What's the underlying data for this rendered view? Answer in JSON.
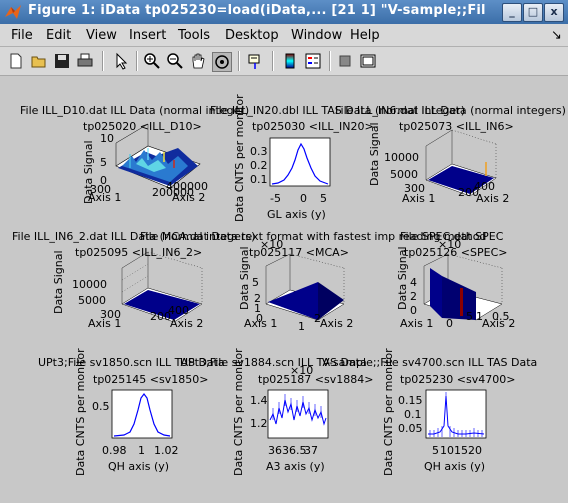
{
  "window": {
    "title": "Figure 1: iData tp025230=load(iData,... [21   1] \"V-sample;;Fil",
    "buttons": [
      "_",
      "□",
      "x"
    ]
  },
  "menu": [
    "File",
    "Edit",
    "View",
    "Insert",
    "Tools",
    "Desktop",
    "Window",
    "Help"
  ],
  "menu_arrow": "↘",
  "toolbar": [
    "new-file-icon",
    "open-folder-icon",
    "save-icon",
    "print-icon",
    "pointer-icon",
    "zoom-in-icon",
    "zoom-out-icon",
    "pan-hand-icon",
    "rotate-3d-icon",
    "data-cursor-icon",
    "colorbar-icon",
    "legend-icon",
    "hide-plot-tools-icon",
    "show-plot-tools-icon"
  ],
  "plots": {
    "p1": {
      "title1": "File ILL_D10.dat ILL Data (normal integer)",
      "title2": "tp025020 <ILL_D10>",
      "zlabel": "Data Signal",
      "xlabel": "Axis 1",
      "ylabel": "Axis 2",
      "zticks": [
        "0",
        "5",
        "10"
      ],
      "xticks": [
        "300"
      ],
      "yticks": [
        "200000",
        "400000"
      ]
    },
    "p2": {
      "title1": "File ILL_IN20.dbl ILL TAS Data (normal integer)",
      "title2": "tp025030 <ILL_IN20>",
      "ylabel": "Data CNTS per monitor",
      "xlabel": "GL axis (y)",
      "yticks": [
        "0.3",
        "0.2",
        "0.1"
      ],
      "xticks": [
        "-5",
        "0",
        "5"
      ]
    },
    "p3": {
      "title1": "File ILL_IN6.dat ILL Data (normal integers)",
      "title2": "tp025073 <ILL_IN6>",
      "zlabel": "Data Signal",
      "xlabel": "Axis 1",
      "ylabel": "Axis 2",
      "zticks": [
        "10000",
        "5000"
      ],
      "xticks": [
        "300"
      ],
      "yticks": [
        "200",
        "400"
      ]
    },
    "p4": {
      "title1": "File ILL_IN6_2.dat ILL Data (normal integers)",
      "title2": "tp025095 <ILL_IN6_2>",
      "zlabel": "Data Signal",
      "xlabel": "Axis 1",
      "ylabel": "Axis 2",
      "zticks": [
        "10000",
        "5000"
      ],
      "xticks": [
        "300"
      ],
      "yticks": [
        "200",
        "400"
      ]
    },
    "p5": {
      "title1": "File MCA.dat Data text format with fastest imp reading method",
      "title2": "tp025117 <MCA>",
      "zlabel": "Data Signal",
      "xlabel": "Axis 1",
      "ylabel": "Axis 2",
      "exp": "×10",
      "zticks": [
        "5",
        "2",
        "1",
        "0"
      ],
      "xticks": [
        "1"
      ],
      "yticks": [
        "1",
        "2"
      ]
    },
    "p6": {
      "title1": "File SPEC.dat SPEC",
      "title2": "tp025126 <SPEC>",
      "zlabel": "Data Signal",
      "xlabel": "Axis 1",
      "ylabel": "Axis 2",
      "exp": "×10",
      "zticks": [
        "4",
        "2",
        "0"
      ],
      "xticks": [
        "0",
        "5"
      ],
      "yticks": [
        "1",
        "0.5"
      ]
    },
    "p7": {
      "title1": "UPt3;File sv1850.scn ILL TAS Data",
      "title2": "tp025145 <sv1850>",
      "ylabel": "Data CNTS per monitor",
      "xlabel": "QH axis (y)",
      "yticks": [
        "0.5"
      ],
      "xticks": [
        "0.98",
        "1",
        "1.02"
      ]
    },
    "p8": {
      "title1": "UPt3;File sv1884.scn ILL TAS Data",
      "title2": "tp025187 <sv1884>",
      "ylabel": "Data CNTS per monitor",
      "xlabel": "A3 axis (y)",
      "exp": "×10",
      "yticks": [
        "1.4",
        "1.2"
      ],
      "xticks": [
        "36",
        "36.5",
        "37"
      ]
    },
    "p9": {
      "title1": "V-sample;;File sv4700.scn ILL TAS Data",
      "title2": "tp025230 <sv4700>",
      "ylabel": "Data CNTS per monitor",
      "xlabel": "QH axis (y)",
      "yticks": [
        "0.15",
        "0.1",
        "0.05"
      ],
      "xticks": [
        "5",
        "10",
        "15",
        "20"
      ]
    }
  },
  "colors": {
    "titlebar": "#3b6ea8",
    "line": "#0000ff",
    "surface": "#000080",
    "accent": "#8b0000"
  }
}
